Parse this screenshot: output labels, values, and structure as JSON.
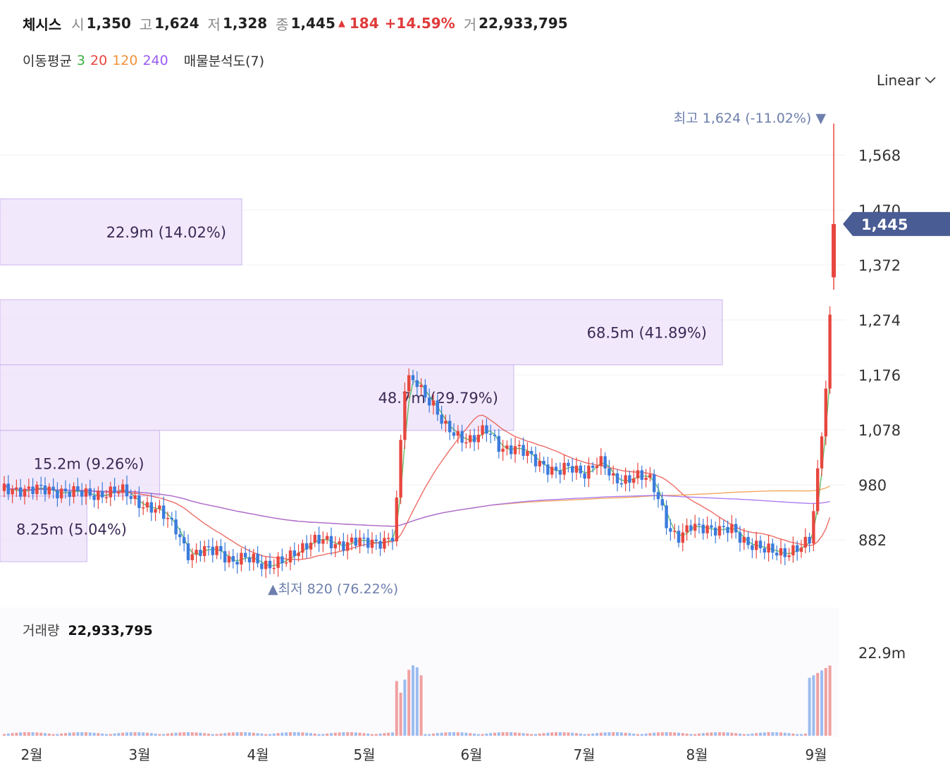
{
  "header": {
    "stock_name": "체시스",
    "open_label": "시",
    "open": "1,350",
    "high_label": "고",
    "high": "1,624",
    "low_label": "저",
    "low": "1,328",
    "close_label": "종",
    "close": "1,445",
    "change": "184",
    "change_pct": "+14.59%",
    "volume_label": "거",
    "volume": "22,933,795"
  },
  "indicators": {
    "ma_label": "이동평균",
    "ma_periods": [
      {
        "period": "3",
        "color": "#3cb043"
      },
      {
        "period": "20",
        "color": "#e8473f"
      },
      {
        "period": "120",
        "color": "#f0923a"
      },
      {
        "period": "240",
        "color": "#9a5cf0"
      }
    ],
    "vp_label": "매물분석도(7)"
  },
  "scale_select": {
    "value": "Linear",
    "options": [
      "Linear"
    ]
  },
  "colors": {
    "up": "#e8473f",
    "down": "#3b7bdc",
    "price_tag": "#4a5c94",
    "profile": "#ece1fa",
    "profile_border": "#cdb5ef",
    "annotation": "#6e7fad"
  },
  "chart_data": {
    "type": "candlestick",
    "price_axis": {
      "ticks": [
        882,
        980,
        1078,
        1176,
        1274,
        1372,
        1470,
        1568
      ],
      "tick_labels": [
        "882",
        "980",
        "1,078",
        "1,176",
        "1,274",
        "1,372",
        "1,470",
        "1,568"
      ],
      "range": [
        780,
        1640
      ]
    },
    "x_axis": {
      "labels": [
        "2월",
        "3월",
        "4월",
        "5월",
        "6월",
        "7월",
        "8월",
        "9월"
      ]
    },
    "current_price": {
      "value": 1445,
      "label": "1,445"
    },
    "max_annotation": {
      "prefix": "최고",
      "text": "1,624 (-11.02%)",
      "value": 1624
    },
    "min_annotation": {
      "prefix": "최저",
      "text": "820 (76.22%)",
      "value": 820
    },
    "volume_profile": [
      {
        "low": 1372,
        "high": 1490,
        "volume_pct": 14.02,
        "label": "22.9m (14.02%)"
      },
      {
        "low": 1194,
        "high": 1310,
        "volume_pct": 41.89,
        "label": "68.5m (41.89%)"
      },
      {
        "low": 1077,
        "high": 1194,
        "volume_pct": 29.79,
        "label": "48.7m (29.79%)"
      },
      {
        "low": 960,
        "high": 1077,
        "volume_pct": 9.26,
        "label": "15.2m (9.26%)"
      },
      {
        "low": 843,
        "high": 960,
        "volume_pct": 5.04,
        "label": "8.25m (5.04%)"
      }
    ],
    "volume_axis": {
      "max_label": "22.9m",
      "max": 22900000
    },
    "volume_label": "거래량",
    "volume_value": "22,933,795"
  }
}
